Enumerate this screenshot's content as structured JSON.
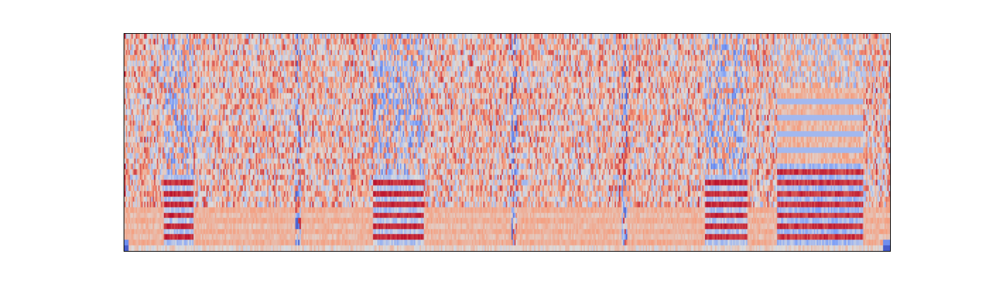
{
  "chart_data": {
    "type": "heatmap",
    "colormap": "coolwarm",
    "axes_visible": false,
    "grid": false,
    "legend": "none",
    "n_time_frames": 542,
    "n_feature_bins": 40,
    "colors": {
      "low": "#3b4cc0",
      "mid": "#dddddd",
      "high": "#b40426"
    },
    "value_range": [
      0,
      1
    ],
    "background_level": 0.6,
    "events": [
      {
        "start_frame": 28,
        "end_frame": 48,
        "kind": "onset-burst"
      },
      {
        "start_frame": 121,
        "end_frame": 124,
        "kind": "transient"
      },
      {
        "start_frame": 176,
        "end_frame": 211,
        "kind": "onset-burst"
      },
      {
        "start_frame": 274,
        "end_frame": 277,
        "kind": "transient"
      },
      {
        "start_frame": 352,
        "end_frame": 355,
        "kind": "transient"
      },
      {
        "start_frame": 411,
        "end_frame": 440,
        "kind": "onset-burst"
      },
      {
        "start_frame": 462,
        "end_frame": 522,
        "kind": "banded"
      }
    ]
  }
}
